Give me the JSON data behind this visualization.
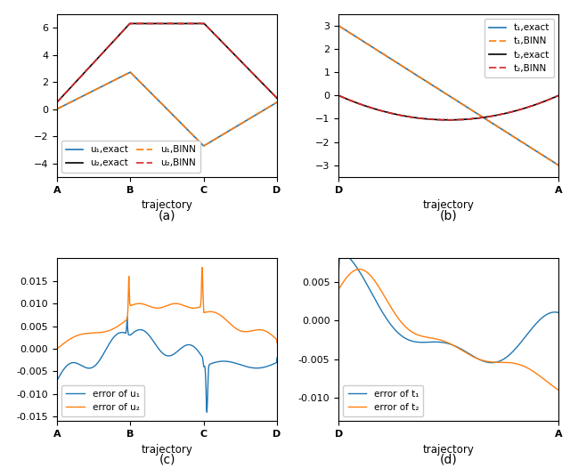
{
  "fig_width": 6.4,
  "fig_height": 5.26,
  "dpi": 100,
  "subplot_labels": [
    "(a)",
    "(b)",
    "(c)",
    "(d)"
  ],
  "panel_a": {
    "xtick_labels": [
      "A",
      "B",
      "C",
      "D"
    ],
    "xlabel": "trajectory",
    "ylim": [
      -5,
      7
    ],
    "yticks": [
      -4,
      -2,
      0,
      2,
      4,
      6
    ],
    "legend_entries": [
      "u₁,exact",
      "u₂,exact",
      "u₁,BINN",
      "u₂,BINN"
    ]
  },
  "panel_b": {
    "xtick_labels": [
      "D",
      "A"
    ],
    "xlabel": "trajectory",
    "ylim": [
      -3.5,
      3.5
    ],
    "yticks": [
      -3,
      -2,
      -1,
      0,
      1,
      2,
      3
    ],
    "legend_entries": [
      "t₁,exact",
      "t₁,BINN",
      "t₂,exact",
      "t₂,BINN"
    ]
  },
  "panel_c": {
    "xtick_labels": [
      "A",
      "B",
      "C",
      "D"
    ],
    "xlabel": "trajectory",
    "ylim": [
      -0.016,
      0.02
    ],
    "yticks": [
      -0.015,
      -0.01,
      -0.005,
      0.0,
      0.005,
      0.01,
      0.015
    ],
    "legend_entries": [
      "error of u₁",
      "error of u₂"
    ]
  },
  "panel_d": {
    "xtick_labels": [
      "D",
      "A"
    ],
    "xlabel": "trajectory",
    "ylim": [
      -0.013,
      0.008
    ],
    "yticks": [
      -0.01,
      -0.005,
      0.0,
      0.005
    ],
    "legend_entries": [
      "error of t₁",
      "error of t₂"
    ]
  },
  "blue_color": "#1f77b4",
  "orange_color": "#ff7f0e",
  "black_color": "#000000",
  "red_color": "#d62728"
}
